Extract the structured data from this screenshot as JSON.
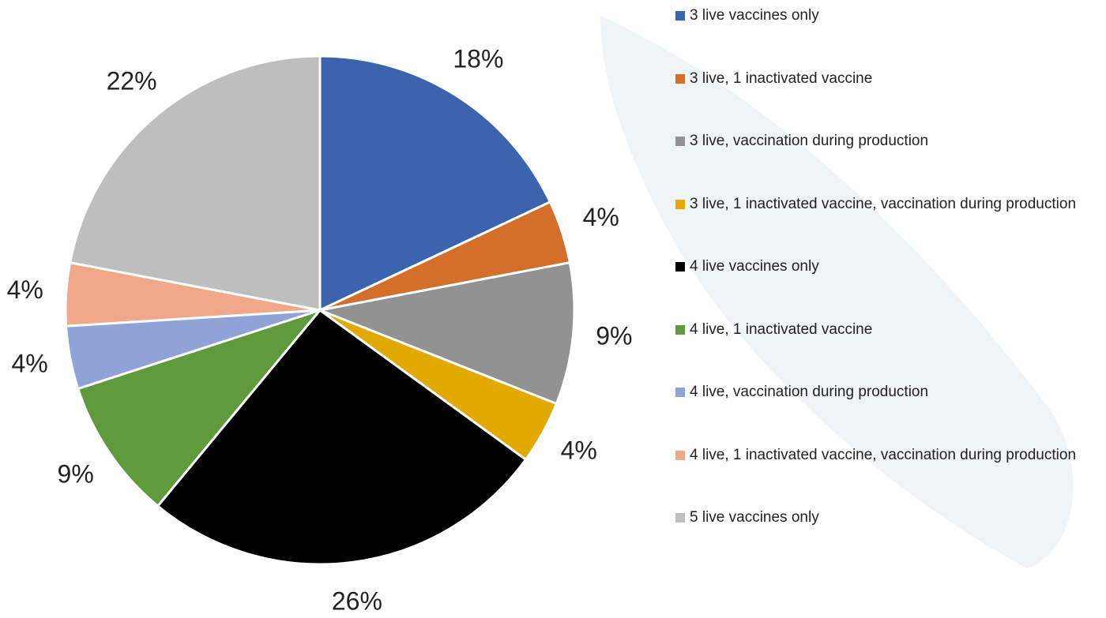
{
  "chart_data": {
    "type": "pie",
    "categories": [
      "3 live vaccines only",
      "3 live, 1 inactivated vaccine",
      "3 live, vaccination during production",
      "3 live, 1 inactivated vaccine, vaccination during production",
      "4 live vaccines only",
      "4 live, 1 inactivated vaccine",
      "4 live, vaccination during production",
      "4 live, 1 inactivated vaccine, vaccination during production",
      "5 live vaccines only"
    ],
    "values": [
      18,
      4,
      9,
      4,
      26,
      9,
      4,
      4,
      22
    ],
    "value_labels": [
      "18%",
      "4%",
      "9%",
      "4%",
      "26%",
      "9%",
      "4%",
      "4%",
      "22%"
    ],
    "colors": [
      "#3c64ae",
      "#d46f2b",
      "#929292",
      "#e2aa00",
      "#000000",
      "#5f9a3d",
      "#8fa3d6",
      "#f0a78a",
      "#bebebe"
    ],
    "legend": "right"
  }
}
